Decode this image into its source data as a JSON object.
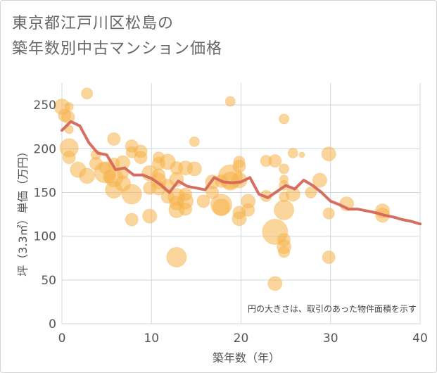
{
  "title_lines": [
    "東京都江戸川区松島の",
    "築年数別中古マンション価格"
  ],
  "colors": {
    "bubble": "#f5b24a",
    "line": "#d4675a",
    "grid": "#cfd8e0"
  },
  "chart_data": {
    "type": "scatter",
    "title": "東京都江戸川区松島の築年数別中古マンション価格",
    "xlabel": "築年数（年）",
    "ylabel": "坪（3.3㎡）単価（万円）",
    "xlim": [
      0,
      40
    ],
    "ylim": [
      0,
      275
    ],
    "xticks": [
      0,
      10,
      20,
      30,
      40
    ],
    "yticks": [
      0,
      50,
      100,
      150,
      200,
      250
    ],
    "grid": true,
    "note": "円の大きさは、取引のあった物件面積を示す",
    "points": [
      {
        "x": 0,
        "y": 248,
        "s": 11
      },
      {
        "x": 0.3,
        "y": 238,
        "s": 9
      },
      {
        "x": 0.8,
        "y": 248,
        "s": 6
      },
      {
        "x": 0.7,
        "y": 236,
        "s": 9
      },
      {
        "x": 0.8,
        "y": 222,
        "s": 6
      },
      {
        "x": 0.8,
        "y": 201,
        "s": 13
      },
      {
        "x": 0.8,
        "y": 190,
        "s": 9
      },
      {
        "x": 2.8,
        "y": 263,
        "s": 8
      },
      {
        "x": 1.8,
        "y": 176,
        "s": 11
      },
      {
        "x": 2.8,
        "y": 169,
        "s": 11
      },
      {
        "x": 3.8,
        "y": 193,
        "s": 7
      },
      {
        "x": 3.8,
        "y": 183,
        "s": 9
      },
      {
        "x": 4.8,
        "y": 178,
        "s": 8
      },
      {
        "x": 5.3,
        "y": 168,
        "s": 9
      },
      {
        "x": 4.8,
        "y": 173,
        "s": 15
      },
      {
        "x": 5.8,
        "y": 211,
        "s": 9
      },
      {
        "x": 5.8,
        "y": 183,
        "s": 8
      },
      {
        "x": 5.8,
        "y": 167,
        "s": 13
      },
      {
        "x": 5.8,
        "y": 153,
        "s": 12
      },
      {
        "x": 6.8,
        "y": 184,
        "s": 10
      },
      {
        "x": 6.8,
        "y": 172,
        "s": 8
      },
      {
        "x": 6.8,
        "y": 160,
        "s": 11
      },
      {
        "x": 7.8,
        "y": 203,
        "s": 9
      },
      {
        "x": 7.8,
        "y": 196,
        "s": 8
      },
      {
        "x": 7.8,
        "y": 148,
        "s": 14
      },
      {
        "x": 7.8,
        "y": 119,
        "s": 9
      },
      {
        "x": 8.8,
        "y": 197,
        "s": 9
      },
      {
        "x": 8.8,
        "y": 190,
        "s": 9
      },
      {
        "x": 9.8,
        "y": 172,
        "s": 11
      },
      {
        "x": 9.8,
        "y": 155,
        "s": 9
      },
      {
        "x": 9.8,
        "y": 123,
        "s": 10
      },
      {
        "x": 10.8,
        "y": 190,
        "s": 8
      },
      {
        "x": 10.8,
        "y": 183,
        "s": 9
      },
      {
        "x": 10.8,
        "y": 170,
        "s": 9
      },
      {
        "x": 10.8,
        "y": 163,
        "s": 11
      },
      {
        "x": 10.8,
        "y": 155,
        "s": 10
      },
      {
        "x": 11.8,
        "y": 185,
        "s": 11
      },
      {
        "x": 11.8,
        "y": 158,
        "s": 9
      },
      {
        "x": 11.8,
        "y": 145,
        "s": 9
      },
      {
        "x": 12.8,
        "y": 178,
        "s": 9
      },
      {
        "x": 12.8,
        "y": 165,
        "s": 10
      },
      {
        "x": 12.8,
        "y": 145,
        "s": 12
      },
      {
        "x": 12.8,
        "y": 138,
        "s": 10
      },
      {
        "x": 12.8,
        "y": 130,
        "s": 11
      },
      {
        "x": 12.8,
        "y": 76,
        "s": 14
      },
      {
        "x": 13.8,
        "y": 178,
        "s": 10
      },
      {
        "x": 13.8,
        "y": 148,
        "s": 9
      },
      {
        "x": 13.8,
        "y": 140,
        "s": 11
      },
      {
        "x": 13.8,
        "y": 131,
        "s": 9
      },
      {
        "x": 14.8,
        "y": 208,
        "s": 7
      },
      {
        "x": 14.8,
        "y": 177,
        "s": 10
      },
      {
        "x": 15.8,
        "y": 140,
        "s": 9
      },
      {
        "x": 16.8,
        "y": 162,
        "s": 10
      },
      {
        "x": 16.8,
        "y": 150,
        "s": 9
      },
      {
        "x": 17.8,
        "y": 163,
        "s": 9
      },
      {
        "x": 17.8,
        "y": 136,
        "s": 15
      },
      {
        "x": 17.8,
        "y": 133,
        "s": 12
      },
      {
        "x": 18.8,
        "y": 254,
        "s": 7
      },
      {
        "x": 18.8,
        "y": 168,
        "s": 17
      },
      {
        "x": 18.8,
        "y": 163,
        "s": 13
      },
      {
        "x": 19.8,
        "y": 185,
        "s": 8
      },
      {
        "x": 19.8,
        "y": 180,
        "s": 9
      },
      {
        "x": 19.8,
        "y": 164,
        "s": 11
      },
      {
        "x": 19.8,
        "y": 127,
        "s": 9
      },
      {
        "x": 19.8,
        "y": 120,
        "s": 10
      },
      {
        "x": 20.8,
        "y": 140,
        "s": 10
      },
      {
        "x": 20.8,
        "y": 130,
        "s": 9
      },
      {
        "x": 22.8,
        "y": 186,
        "s": 8
      },
      {
        "x": 23.8,
        "y": 186,
        "s": 9
      },
      {
        "x": 22.8,
        "y": 146,
        "s": 8
      },
      {
        "x": 23.8,
        "y": 105,
        "s": 18
      },
      {
        "x": 23.8,
        "y": 46,
        "s": 10
      },
      {
        "x": 24.8,
        "y": 234,
        "s": 7
      },
      {
        "x": 24.8,
        "y": 177,
        "s": 7
      },
      {
        "x": 24.8,
        "y": 165,
        "s": 6
      },
      {
        "x": 24.8,
        "y": 158,
        "s": 7
      },
      {
        "x": 24.8,
        "y": 145,
        "s": 7
      },
      {
        "x": 24.8,
        "y": 130,
        "s": 14
      },
      {
        "x": 24.8,
        "y": 96,
        "s": 9
      },
      {
        "x": 24.8,
        "y": 88,
        "s": 10
      },
      {
        "x": 24.8,
        "y": 82,
        "s": 8
      },
      {
        "x": 25.8,
        "y": 195,
        "s": 7
      },
      {
        "x": 25.8,
        "y": 148,
        "s": 10
      },
      {
        "x": 26.8,
        "y": 193,
        "s": 4
      },
      {
        "x": 27.8,
        "y": 150,
        "s": 8
      },
      {
        "x": 28.8,
        "y": 164,
        "s": 10
      },
      {
        "x": 29.8,
        "y": 194,
        "s": 10
      },
      {
        "x": 29.8,
        "y": 126,
        "s": 8
      },
      {
        "x": 29.8,
        "y": 76,
        "s": 9
      },
      {
        "x": 31.8,
        "y": 137,
        "s": 10
      },
      {
        "x": 35.8,
        "y": 129,
        "s": 10
      },
      {
        "x": 35.8,
        "y": 124,
        "s": 10
      }
    ],
    "trend": {
      "name": "",
      "x": [
        0,
        1,
        2,
        3,
        4,
        5,
        6,
        7,
        8,
        9,
        10,
        11,
        12,
        13,
        14,
        15,
        16,
        17,
        18,
        19,
        20,
        21,
        22,
        23,
        24,
        25,
        26,
        27,
        28,
        29,
        30,
        31,
        32,
        33,
        34,
        35,
        36,
        37,
        38,
        39,
        40
      ],
      "y": [
        221,
        231,
        226,
        207,
        195,
        193,
        176,
        178,
        170,
        170,
        166,
        159,
        150,
        163,
        157,
        155,
        153,
        167,
        162,
        161,
        162,
        167,
        148,
        144,
        151,
        158,
        154,
        164,
        158,
        150,
        140,
        136,
        131,
        131,
        129,
        127,
        124,
        122,
        119,
        117,
        114
      ]
    }
  }
}
